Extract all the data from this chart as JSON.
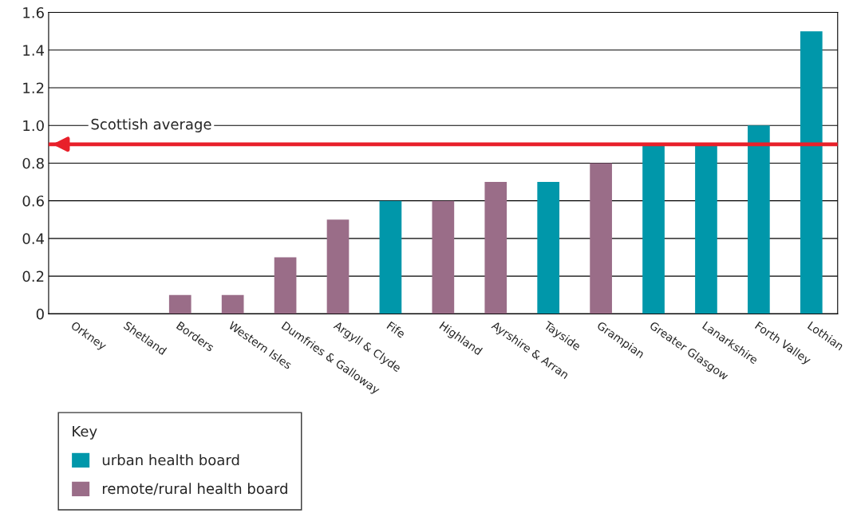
{
  "chart_data": {
    "type": "bar",
    "categories": [
      "Orkney",
      "Shetland",
      "Borders",
      "Western Isles",
      "Dumfries & Galloway",
      "Argyll & Clyde",
      "Fife",
      "Highland",
      "Ayrshire & Arran",
      "Tayside",
      "Grampian",
      "Greater Glasgow",
      "Lanarkshire",
      "Forth Valley",
      "Lothian"
    ],
    "series": [
      {
        "name": "urban health board",
        "color": "#0097aa",
        "values": [
          null,
          null,
          null,
          null,
          null,
          null,
          0.6,
          null,
          null,
          0.7,
          null,
          0.9,
          0.9,
          1.0,
          1.5
        ]
      },
      {
        "name": "remote/rural health board",
        "color": "#9a6d88",
        "values": [
          0,
          0,
          0.1,
          0.1,
          0.3,
          0.5,
          null,
          0.6,
          0.7,
          null,
          0.8,
          null,
          null,
          null,
          null
        ]
      }
    ],
    "ylim": [
      0,
      1.6
    ],
    "yticks": [
      0,
      0.2,
      0.4,
      0.6,
      0.8,
      {
        "value": 1.0,
        "label": "1.0"
      },
      1.2,
      1.4,
      1.6
    ],
    "grid": "y",
    "legend": "bottom left",
    "legend_title": "Key",
    "ref_lines": [
      {
        "axis": "y",
        "value": 0.9,
        "label": "Scottish average",
        "color": "#e8202a"
      }
    ]
  }
}
